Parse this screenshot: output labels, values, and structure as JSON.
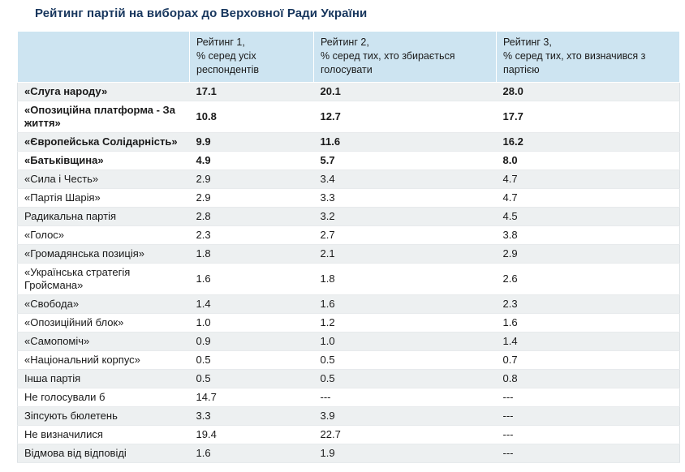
{
  "title": "Рейтинг партій на виборах до Верховної Ради України",
  "chart_data": {
    "type": "table",
    "title": "Рейтинг партій на виборах до Верховної Ради України",
    "column_headers": [
      "",
      "Рейтинг 1,\n% серед усіх респондентів",
      "Рейтинг 2,\n% серед тих, хто збирається голосувати",
      "Рейтинг 3,\n% серед тих, хто визначився з партією"
    ],
    "missing_value_marker": "---",
    "rows": [
      {
        "party": "«Слуга народу»",
        "bold": true,
        "rating1": "17.1",
        "rating2": "20.1",
        "rating3": "28.0"
      },
      {
        "party": "«Опозиційна платформа - За життя»",
        "bold": true,
        "rating1": "10.8",
        "rating2": "12.7",
        "rating3": "17.7"
      },
      {
        "party": "«Європейська Солідарність»",
        "bold": true,
        "rating1": "9.9",
        "rating2": "11.6",
        "rating3": "16.2"
      },
      {
        "party": "«Батьківщина»",
        "bold": true,
        "rating1": "4.9",
        "rating2": "5.7",
        "rating3": "8.0"
      },
      {
        "party": "«Сила і Честь»",
        "bold": false,
        "rating1": "2.9",
        "rating2": "3.4",
        "rating3": "4.7"
      },
      {
        "party": "«Партія Шарія»",
        "bold": false,
        "rating1": "2.9",
        "rating2": "3.3",
        "rating3": "4.7"
      },
      {
        "party": "Радикальна партія",
        "bold": false,
        "rating1": "2.8",
        "rating2": "3.2",
        "rating3": "4.5"
      },
      {
        "party": "«Голос»",
        "bold": false,
        "rating1": "2.3",
        "rating2": "2.7",
        "rating3": "3.8"
      },
      {
        "party": "«Громадянська позиція»",
        "bold": false,
        "rating1": "1.8",
        "rating2": "2.1",
        "rating3": "2.9"
      },
      {
        "party": "«Українська стратегія Гройсмана»",
        "bold": false,
        "rating1": "1.6",
        "rating2": "1.8",
        "rating3": "2.6"
      },
      {
        "party": "«Свобода»",
        "bold": false,
        "rating1": "1.4",
        "rating2": "1.6",
        "rating3": "2.3"
      },
      {
        "party": "«Опозиційний блок»",
        "bold": false,
        "rating1": "1.0",
        "rating2": "1.2",
        "rating3": "1.6"
      },
      {
        "party": "«Самопоміч»",
        "bold": false,
        "rating1": "0.9",
        "rating2": "1.0",
        "rating3": "1.4"
      },
      {
        "party": "«Національний корпус»",
        "bold": false,
        "rating1": "0.5",
        "rating2": "0.5",
        "rating3": "0.7"
      },
      {
        "party": "Інша партія",
        "bold": false,
        "rating1": "0.5",
        "rating2": "0.5",
        "rating3": "0.8"
      },
      {
        "party": "Не голосували б",
        "bold": false,
        "rating1": "14.7",
        "rating2": "---",
        "rating3": "---"
      },
      {
        "party": "Зіпсують бюлетень",
        "bold": false,
        "rating1": "3.3",
        "rating2": "3.9",
        "rating3": "---"
      },
      {
        "party": "Не визначилися",
        "bold": false,
        "rating1": "19.4",
        "rating2": "22.7",
        "rating3": "---"
      },
      {
        "party": "Відмова від відповіді",
        "bold": false,
        "rating1": "1.6",
        "rating2": "1.9",
        "rating3": "---"
      }
    ],
    "colors": {
      "title_text": "#17365d",
      "header_bg": "#cde4f1",
      "shaded_row_bg": "#edf0f1",
      "body_text": "#1a1a1a"
    },
    "layout_hints": {
      "striping": "alternate rows shaded, starting with first data row",
      "bold_rows": "top four parties are bold (names and values)"
    }
  }
}
